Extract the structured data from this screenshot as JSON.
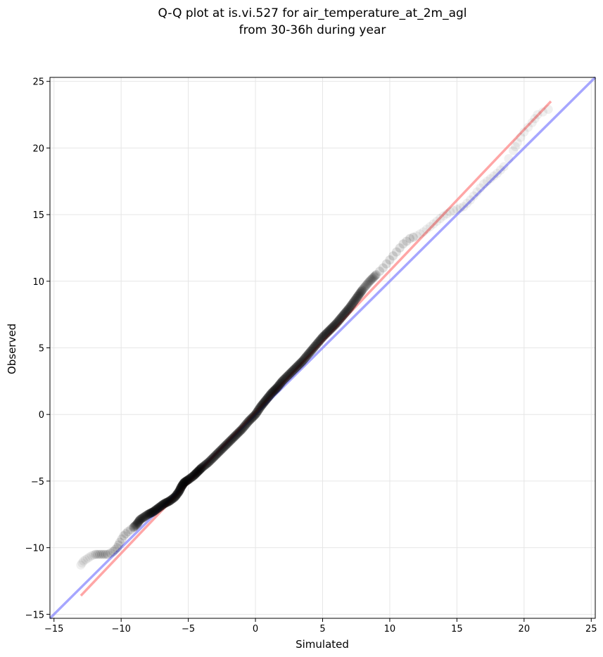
{
  "chart_data": {
    "type": "scatter",
    "title_line1": "Q-Q plot at is.vi.527 for air_temperature_at_2m_agl",
    "title_line2": "from 30-36h during year",
    "xlabel": "Simulated",
    "ylabel": "Observed",
    "xlim": [
      -15.3,
      25.3
    ],
    "ylim": [
      -15.3,
      25.3
    ],
    "xticks": [
      -15,
      -10,
      -5,
      0,
      5,
      10,
      15,
      20,
      25
    ],
    "yticks": [
      -15,
      -10,
      -5,
      0,
      5,
      10,
      15,
      20,
      25
    ],
    "grid": true,
    "quantile_points": [
      [
        -13.0,
        -11.3
      ],
      [
        -12.8,
        -11.0
      ],
      [
        -12.5,
        -10.8
      ],
      [
        -12.2,
        -10.6
      ],
      [
        -11.9,
        -10.5
      ],
      [
        -11.6,
        -10.5
      ],
      [
        -11.3,
        -10.5
      ],
      [
        -11.0,
        -10.5
      ],
      [
        -10.6,
        -10.3
      ],
      [
        -10.3,
        -10.0
      ],
      [
        -10.1,
        -9.6
      ],
      [
        -9.8,
        -9.1
      ],
      [
        -9.5,
        -8.8
      ],
      [
        -9.1,
        -8.5
      ],
      [
        -8.8,
        -8.2
      ],
      [
        -8.6,
        -7.9
      ],
      [
        -8.3,
        -7.7
      ],
      [
        -8.0,
        -7.5
      ],
      [
        -7.6,
        -7.3
      ],
      [
        -7.2,
        -7.0
      ],
      [
        -6.8,
        -6.7
      ],
      [
        -6.4,
        -6.5
      ],
      [
        -6.0,
        -6.2
      ],
      [
        -5.7,
        -5.8
      ],
      [
        -5.5,
        -5.4
      ],
      [
        -5.3,
        -5.1
      ],
      [
        -5.0,
        -4.9
      ],
      [
        -4.6,
        -4.6
      ],
      [
        -4.3,
        -4.3
      ],
      [
        -4.0,
        -4.0
      ],
      [
        -3.5,
        -3.6
      ],
      [
        -3.0,
        -3.1
      ],
      [
        -2.5,
        -2.6
      ],
      [
        -2.0,
        -2.1
      ],
      [
        -1.5,
        -1.6
      ],
      [
        -1.0,
        -1.1
      ],
      [
        -0.5,
        -0.5
      ],
      [
        0.0,
        0.0
      ],
      [
        0.4,
        0.6
      ],
      [
        0.8,
        1.1
      ],
      [
        1.2,
        1.6
      ],
      [
        1.6,
        2.0
      ],
      [
        2.0,
        2.5
      ],
      [
        2.5,
        3.0
      ],
      [
        3.0,
        3.5
      ],
      [
        3.5,
        4.0
      ],
      [
        4.0,
        4.6
      ],
      [
        4.5,
        5.2
      ],
      [
        5.0,
        5.8
      ],
      [
        5.5,
        6.3
      ],
      [
        6.0,
        6.8
      ],
      [
        6.5,
        7.4
      ],
      [
        7.0,
        8.0
      ],
      [
        7.5,
        8.7
      ],
      [
        8.0,
        9.4
      ],
      [
        8.5,
        10.0
      ],
      [
        9.0,
        10.5
      ],
      [
        9.5,
        11.0
      ],
      [
        10.0,
        11.6
      ],
      [
        10.5,
        12.2
      ],
      [
        11.0,
        12.8
      ],
      [
        11.5,
        13.2
      ],
      [
        12.0,
        13.4
      ],
      [
        12.5,
        13.7
      ],
      [
        13.0,
        14.1
      ],
      [
        13.5,
        14.5
      ],
      [
        14.0,
        14.9
      ],
      [
        14.5,
        15.2
      ],
      [
        15.0,
        15.4
      ],
      [
        15.5,
        15.6
      ],
      [
        16.0,
        16.1
      ],
      [
        16.5,
        16.7
      ],
      [
        17.0,
        17.3
      ],
      [
        17.5,
        17.7
      ],
      [
        18.0,
        18.1
      ],
      [
        18.5,
        18.6
      ],
      [
        19.2,
        19.8
      ],
      [
        19.5,
        20.4
      ],
      [
        20.0,
        21.2
      ],
      [
        20.6,
        21.9
      ],
      [
        21.0,
        22.5
      ],
      [
        21.8,
        22.9
      ]
    ],
    "identity_line": {
      "color": "#8080ff",
      "x": [
        -15.3,
        25.3
      ],
      "y": [
        -15.3,
        25.3
      ]
    },
    "fit_line": {
      "color": "#ff8080",
      "x": [
        -13.0,
        22.0
      ],
      "y": [
        -13.6,
        23.5
      ]
    },
    "point_color": "#000000"
  }
}
